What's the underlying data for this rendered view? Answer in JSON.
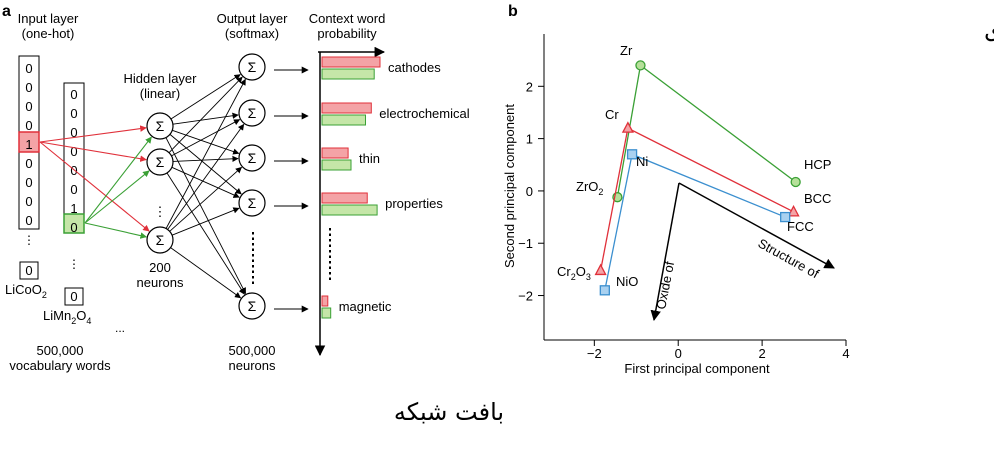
{
  "panel_a": {
    "label": "a",
    "input": {
      "title_line1": "Input layer",
      "title_line2": "(one-hot)",
      "vector1_digits": [
        "0",
        "0",
        "0",
        "0",
        "1",
        "0",
        "0",
        "0",
        "0"
      ],
      "vector1_word": "LiCoO",
      "vector1_word_sub": "2",
      "vector2_digits": [
        "0",
        "0",
        "0",
        "0",
        "0",
        "0",
        "1",
        "0"
      ],
      "vector2_word_part1": "LiMn",
      "vector2_word_sub1": "2",
      "vector2_word_part2": "O",
      "vector2_word_sub2": "4",
      "extra_zero": "0",
      "ellipsis": "...",
      "count_line1": "500,000",
      "count_line2": "vocabulary words"
    },
    "hidden": {
      "title_line1": "Hidden layer",
      "title_line2": "(linear)",
      "neuron_symbol": "Σ",
      "count_line1": "200",
      "count_line2": "neurons"
    },
    "output": {
      "title_line1": "Output layer",
      "title_line2": "(softmax)",
      "neuron_symbol": "Σ",
      "count_line1": "500,000",
      "count_line2": "neurons"
    },
    "probability": {
      "title_line1": "Context word",
      "title_line2": "probability",
      "words": [
        "cathodes",
        "electrochemical",
        "thin",
        "properties",
        "magnetic"
      ],
      "bars_red_relative": [
        1.0,
        0.85,
        0.45,
        0.78,
        0.1
      ],
      "bars_green_relative": [
        0.9,
        0.75,
        0.5,
        0.95,
        0.15
      ]
    },
    "colors": {
      "red": "#e0303a",
      "red_fill": "#f4a3a6",
      "green": "#3aa035",
      "green_fill": "#c5e6a8"
    }
  },
  "panel_b": {
    "label": "b",
    "chart_data": {
      "type": "scatter",
      "xlabel": "First principal component",
      "ylabel": "Second principal component",
      "xlim": [
        -3.2,
        4
      ],
      "ylim": [
        -2.85,
        3
      ],
      "xticks": [
        -2,
        0,
        2,
        4
      ],
      "yticks": [
        -2,
        -1,
        0,
        1,
        2
      ],
      "series": [
        {
          "marker": "circle",
          "color": "#3aa035",
          "points": [
            {
              "label": "Zr",
              "x": -0.9,
              "y": 2.4
            },
            {
              "label": "HCP",
              "x": 2.8,
              "y": 0.17
            },
            {
              "label": "ZrO2",
              "x": -1.45,
              "y": -0.12
            }
          ]
        },
        {
          "marker": "triangle",
          "color": "#e0303a",
          "points": [
            {
              "label": "Cr",
              "x": -1.2,
              "y": 1.2
            },
            {
              "label": "BCC",
              "x": 2.75,
              "y": -0.4
            },
            {
              "label": "Cr2O3",
              "x": -1.85,
              "y": -1.52
            }
          ]
        },
        {
          "marker": "square",
          "color": "#3b8fcf",
          "points": [
            {
              "label": "Ni",
              "x": -1.1,
              "y": 0.7
            },
            {
              "label": "FCC",
              "x": 2.55,
              "y": -0.5
            },
            {
              "label": "NiO",
              "x": -1.75,
              "y": -1.9
            }
          ]
        }
      ],
      "annotations": [
        "Structure of",
        "Oxide of"
      ]
    },
    "labels": {
      "Zr": "Zr",
      "HCP": "HCP",
      "ZrO_main": "ZrO",
      "ZrO_sub": "2",
      "Cr": "Cr",
      "BCC": "BCC",
      "Cr_main": "Cr",
      "Cr_sub1": "2",
      "O_main": "O",
      "O_sub": "3",
      "Ni": "Ni",
      "FCC": "FCC",
      "NiO": "NiO"
    }
  },
  "overlay": {
    "top_right_text": "پردازش متن های خبری",
    "bottom_text": "بافت شبکه"
  }
}
